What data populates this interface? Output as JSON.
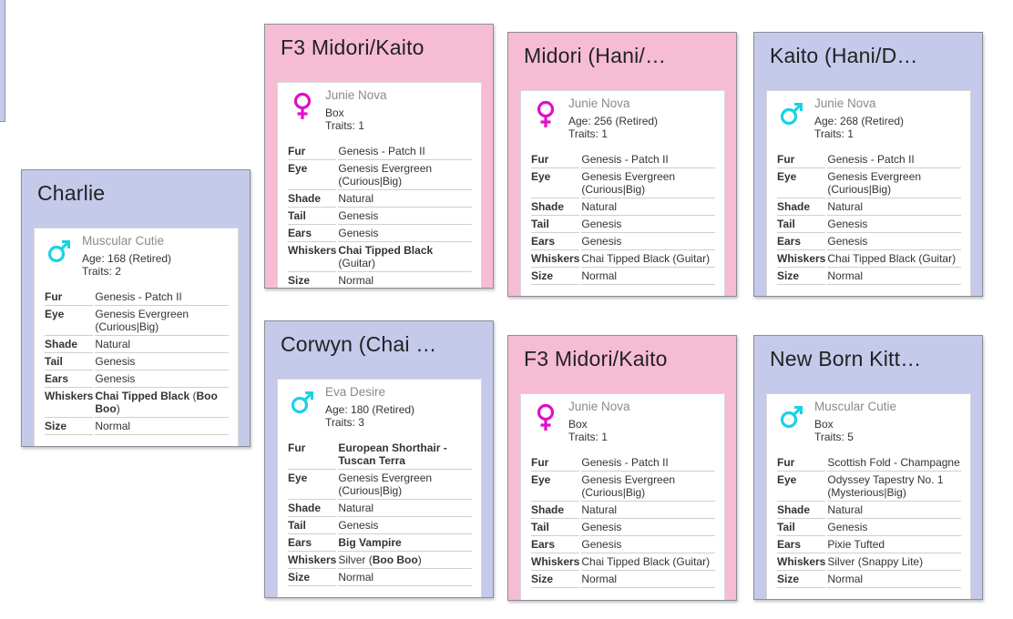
{
  "labels": {
    "fur": "Fur",
    "eye": "Eye",
    "shade": "Shade",
    "tail": "Tail",
    "ears": "Ears",
    "whiskers": "Whiskers",
    "size": "Size"
  },
  "colors": {
    "male_card": "#c5c9ea",
    "female_card": "#f6bcd3",
    "sex_female_icon": "#e00fc7",
    "sex_male_icon": "#19d3e3"
  },
  "cards": {
    "charlie": {
      "title": "Charlie",
      "sex_icon": "male-icon",
      "name": "Muscular Cutie",
      "line1": "Age: 168 (Retired)",
      "line2": "Traits: 2",
      "fur": "Genesis - Patch II",
      "eye_l1": "Genesis Evergreen",
      "eye_l2": "(Curious|Big)",
      "shade": "Natural",
      "tail": "Genesis",
      "ears": "Genesis",
      "whiskers_a": "Chai Tipped Black",
      "whiskers_b": " (",
      "whiskers_c": "Boo",
      "whiskers_d": "Boo",
      "whiskers_e": ")",
      "size": "Normal"
    },
    "f3_top": {
      "title": "F3 Midori/Kaito",
      "sex_icon": "female-icon",
      "name": "Junie Nova",
      "line1": "Box",
      "line2": "Traits: 1",
      "fur": "Genesis - Patch II",
      "eye_l1": "Genesis Evergreen",
      "eye_l2": "(Curious|Big)",
      "shade": "Natural",
      "tail": "Genesis",
      "ears": "Genesis",
      "whiskers_a": "Chai Tipped Black",
      "whiskers_b": " (Guitar)",
      "size": "Normal"
    },
    "midori": {
      "title": "Midori (Hani/…",
      "sex_icon": "female-icon",
      "name": "Junie Nova",
      "line1": "Age: 256 (Retired)",
      "line2": "Traits: 1",
      "fur": "Genesis - Patch II",
      "eye_l1": "Genesis Evergreen",
      "eye_l2": "(Curious|Big)",
      "shade": "Natural",
      "tail": "Genesis",
      "ears": "Genesis",
      "whiskers": "Chai Tipped Black (Guitar)",
      "size": "Normal"
    },
    "kaito": {
      "title": "Kaito (Hani/D…",
      "sex_icon": "male-icon",
      "name": "Junie Nova",
      "line1": "Age: 268 (Retired)",
      "line2": "Traits: 1",
      "fur": "Genesis - Patch II",
      "eye_l1": "Genesis Evergreen",
      "eye_l2": "(Curious|Big)",
      "shade": "Natural",
      "tail": "Genesis",
      "ears": "Genesis",
      "whiskers": "Chai Tipped Black (Guitar)",
      "size": "Normal"
    },
    "corwyn": {
      "title": "Corwyn (Chai …",
      "sex_icon": "male-icon",
      "name": "Eva Desire",
      "line1": "Age: 180 (Retired)",
      "line2": "Traits: 3",
      "fur_l1": "European Shorthair -",
      "fur_l2": "Tuscan Terra",
      "eye_l1": "Genesis Evergreen",
      "eye_l2": "(Curious|Big)",
      "shade": "Natural",
      "tail": "Genesis",
      "ears": "Big Vampire",
      "whiskers_a": "Silver (",
      "whiskers_b": "Boo Boo",
      "whiskers_c": ")",
      "size": "Normal"
    },
    "f3_bottom": {
      "title": "F3 Midori/Kaito",
      "sex_icon": "female-icon",
      "name": "Junie Nova",
      "line1": "Box",
      "line2": "Traits: 1",
      "fur": "Genesis - Patch II",
      "eye_l1": "Genesis Evergreen",
      "eye_l2": "(Curious|Big)",
      "shade": "Natural",
      "tail": "Genesis",
      "ears": "Genesis",
      "whiskers": "Chai Tipped Black (Guitar)",
      "size": "Normal"
    },
    "newborn": {
      "title": "New Born Kitt…",
      "sex_icon": "male-icon",
      "name": "Muscular Cutie",
      "line1": "Box",
      "line2": "Traits: 5",
      "fur": "Scottish Fold - Champagne",
      "eye_l1": "Odyssey Tapestry No. 1",
      "eye_l2": "(Mysterious|Big)",
      "shade": "Natural",
      "tail": "Genesis",
      "ears": "Pixie Tufted",
      "whiskers": "Silver (Snappy Lite)",
      "size": "Normal"
    }
  }
}
